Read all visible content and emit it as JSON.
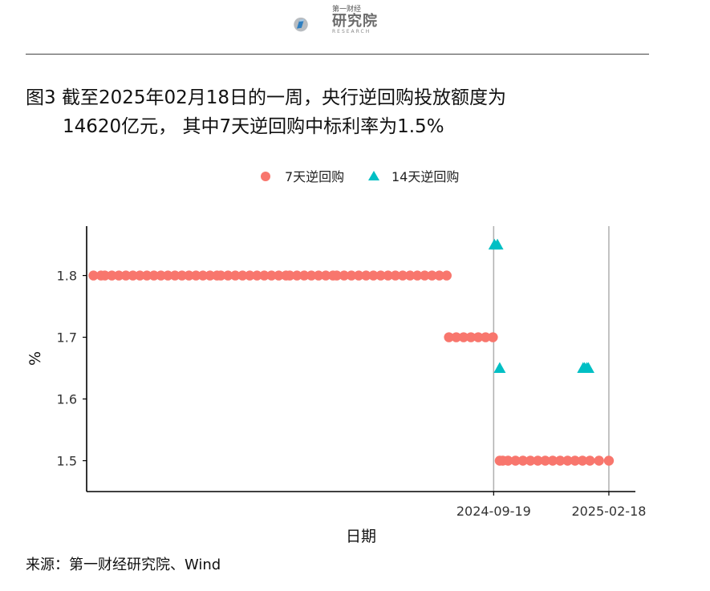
{
  "logo": {
    "small": "第一财经",
    "big": "研究院",
    "en": "RESEARCH"
  },
  "title": {
    "line1": "图3  截至2025年02月18日的一周，央行逆回购投放额度为",
    "line2": "14620亿元， 其中7天逆回购中标利率为1.5%"
  },
  "source": "来源：第一财经研究院、Wind",
  "colors": {
    "series_7d": "#F8766D",
    "series_14d": "#00BFC4",
    "vline": "#b0b0b0",
    "axis": "#000000"
  },
  "chart_data": {
    "type": "scatter",
    "xlabel": "日期",
    "ylabel": "%",
    "ylim": [
      1.45,
      1.88
    ],
    "yticks": [
      1.5,
      1.6,
      1.7,
      1.8
    ],
    "ytick_labels": [
      "1.5",
      "1.6",
      "1.7",
      "1.8"
    ],
    "xticks": [
      "2024-09-19",
      "2025-02-18"
    ],
    "xlim": [
      "2023-04-01",
      "2025-03-25"
    ],
    "vlines": [
      "2024-09-19",
      "2025-02-18"
    ],
    "legend_position": "top",
    "grid": false,
    "series": [
      {
        "name": "7天逆回购",
        "marker": "circle",
        "points": [
          {
            "x_start": "2023-04-10",
            "x_end": "2023-04-20",
            "y": 1.8
          },
          {
            "x_start": "2023-04-25",
            "x_end": "2023-09-20",
            "y": 1.8
          },
          {
            "x_start": "2023-09-25",
            "x_end": "2023-12-20",
            "y": 1.8
          },
          {
            "x_start": "2023-12-25",
            "x_end": "2024-02-20",
            "y": 1.8
          },
          {
            "x_start": "2024-02-25",
            "x_end": "2024-07-19",
            "y": 1.8
          },
          {
            "x_start": "2024-07-22",
            "x_end": "2024-09-18",
            "y": 1.7
          },
          {
            "x_start": "2024-09-27",
            "x_end": "2024-10-01",
            "y": 1.5
          },
          {
            "x_start": "2024-10-08",
            "x_end": "2025-01-24",
            "y": 1.5
          },
          {
            "x_start": "2025-02-05",
            "x_end": "2025-02-18",
            "y": 1.5
          }
        ]
      },
      {
        "name": "14天逆回购",
        "marker": "triangle",
        "points": [
          {
            "x": "2024-09-20",
            "y": 1.85
          },
          {
            "x": "2024-09-24",
            "y": 1.85
          },
          {
            "x": "2024-09-27",
            "y": 1.65
          },
          {
            "x": "2025-01-15",
            "y": 1.65
          },
          {
            "x": "2025-01-17",
            "y": 1.65
          },
          {
            "x": "2025-01-20",
            "y": 1.65
          },
          {
            "x": "2025-01-22",
            "y": 1.65
          }
        ]
      }
    ]
  }
}
